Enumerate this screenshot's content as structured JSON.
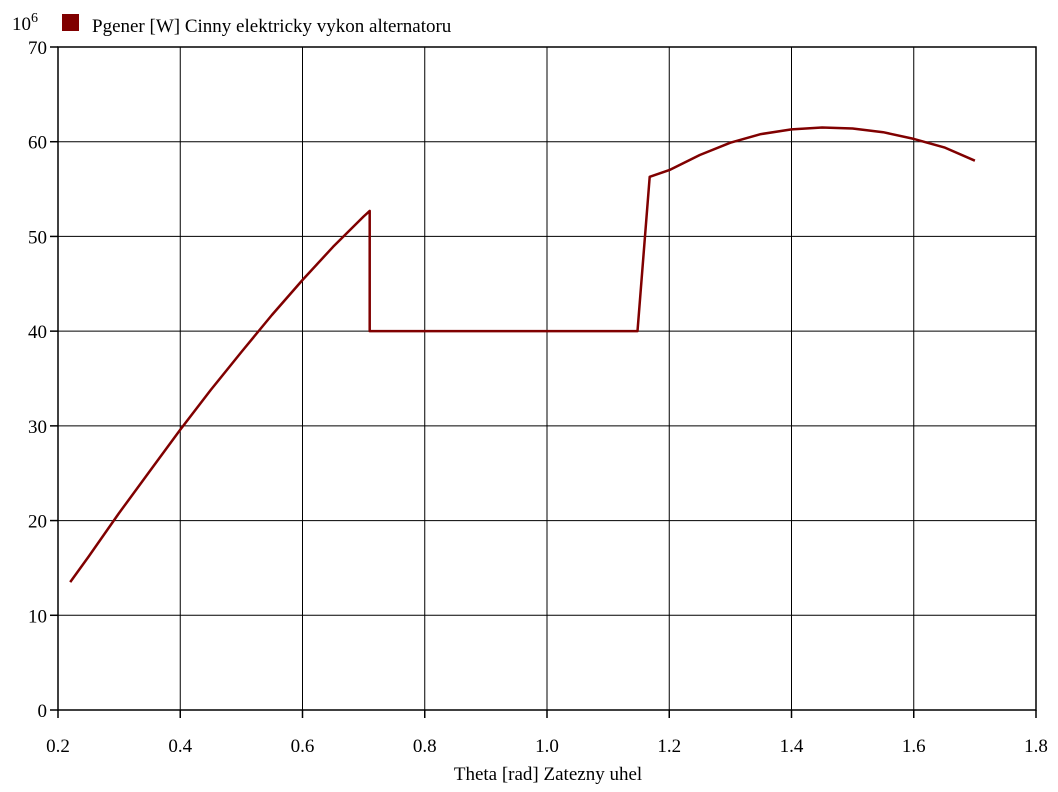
{
  "chart_data": {
    "type": "line",
    "legend": {
      "placement": "top-left",
      "entries": [
        {
          "label": "Pgener [W] Cinny elektricky vykon alternatoru",
          "color": "#800000"
        }
      ]
    },
    "xlabel": "Theta [rad] Zatezny uhel",
    "ylabel": "",
    "y_multiplier_base": "10",
    "y_multiplier_exp": "6",
    "xlim": [
      0.2,
      1.8
    ],
    "ylim": [
      0,
      70
    ],
    "xticks": [
      0.2,
      0.4,
      0.6,
      0.8,
      1.0,
      1.2,
      1.4,
      1.6,
      1.8
    ],
    "xtick_labels": [
      "0.2",
      "0.4",
      "0.6",
      "0.8",
      "1.0",
      "1.2",
      "1.4",
      "1.6",
      "1.8"
    ],
    "yticks": [
      0,
      10,
      20,
      30,
      40,
      50,
      60,
      70
    ],
    "ytick_labels": [
      "0",
      "10",
      "20",
      "30",
      "40",
      "50",
      "60",
      "70"
    ],
    "grid": true,
    "series": [
      {
        "name": "Pgener [W] Cinny elektricky vykon alternatoru",
        "color": "#800000",
        "x": [
          0.22,
          0.25,
          0.3,
          0.35,
          0.4,
          0.45,
          0.5,
          0.55,
          0.6,
          0.65,
          0.7,
          0.71,
          0.71,
          1.148,
          1.168,
          1.2,
          1.25,
          1.3,
          1.35,
          1.4,
          1.45,
          1.5,
          1.55,
          1.6,
          1.65,
          1.7
        ],
        "y": [
          13.5,
          16.2,
          20.8,
          25.2,
          29.6,
          33.8,
          37.8,
          41.7,
          45.4,
          48.9,
          52.1,
          52.7,
          40.0,
          40.0,
          56.3,
          57.0,
          58.6,
          59.9,
          60.8,
          61.3,
          61.5,
          61.4,
          61.0,
          60.3,
          59.4,
          58.0
        ]
      }
    ]
  }
}
